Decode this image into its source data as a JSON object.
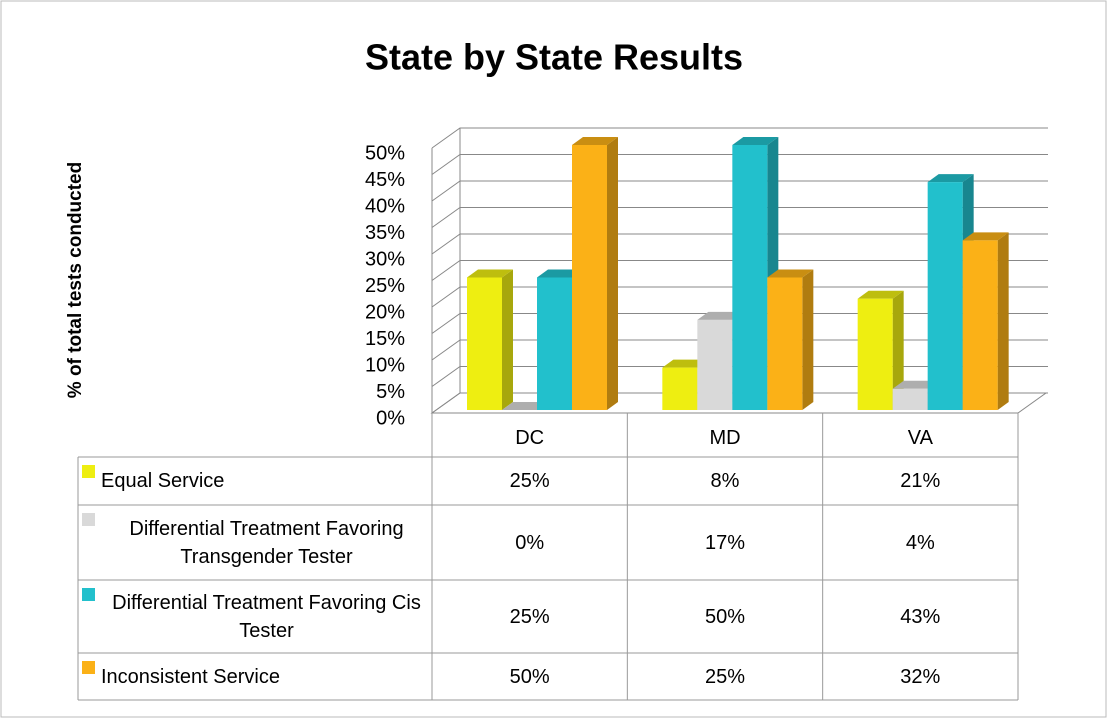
{
  "chart_data": {
    "type": "bar3d",
    "title": "State by State Results",
    "y_label": "% of total tests conducted",
    "categories": [
      "DC",
      "MD",
      "VA"
    ],
    "series": [
      {
        "name": "Equal Service",
        "color": "#eeee11",
        "values": [
          25,
          8,
          21
        ],
        "value_labels": [
          "25%",
          "8%",
          "21%"
        ]
      },
      {
        "name": "Differential Treatment Favoring Transgender Tester",
        "color": "#d9d9d9",
        "values": [
          0,
          17,
          4
        ],
        "value_labels": [
          "0%",
          "17%",
          "4%"
        ]
      },
      {
        "name": "Differential Treatment Favoring Cis Tester",
        "color": "#22c0cc",
        "values": [
          25,
          50,
          43
        ],
        "value_labels": [
          "25%",
          "50%",
          "43%"
        ]
      },
      {
        "name": "Inconsistent Service",
        "color": "#fbb117",
        "values": [
          50,
          25,
          32
        ],
        "value_labels": [
          "50%",
          "25%",
          "32%"
        ]
      }
    ],
    "ylim": [
      0,
      50
    ],
    "yticks": [
      {
        "value": 0,
        "label": "0%"
      },
      {
        "value": 5,
        "label": "5%"
      },
      {
        "value": 10,
        "label": "10%"
      },
      {
        "value": 15,
        "label": "15%"
      },
      {
        "value": 20,
        "label": "20%"
      },
      {
        "value": 25,
        "label": "25%"
      },
      {
        "value": 30,
        "label": "30%"
      },
      {
        "value": 35,
        "label": "35%"
      },
      {
        "value": 40,
        "label": "40%"
      },
      {
        "value": 45,
        "label": "45%"
      },
      {
        "value": 50,
        "label": "50%"
      }
    ],
    "grid": true,
    "data_table": true
  }
}
